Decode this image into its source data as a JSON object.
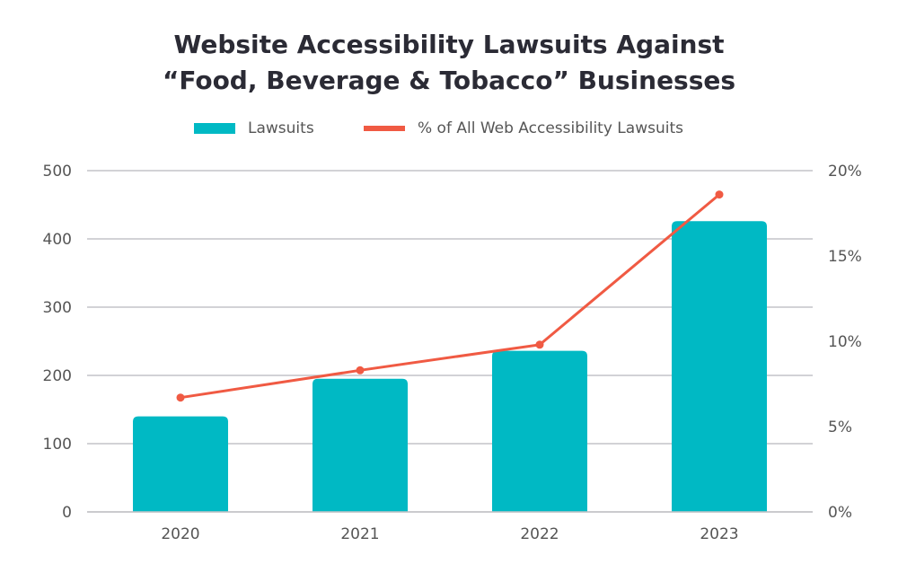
{
  "chart_data": {
    "type": "bar",
    "title_line1": "Website Accessibility Lawsuits Against",
    "title_line2": "“Food, Beverage & Tobacco” Businesses",
    "categories": [
      "2020",
      "2021",
      "2022",
      "2023"
    ],
    "series": [
      {
        "name": "Lawsuits",
        "type": "bar",
        "axis": "left",
        "color": "#00b9c4",
        "values": [
          140,
          195,
          236,
          426
        ]
      },
      {
        "name": "% of All Web Accessibility Lawsuits",
        "type": "line",
        "axis": "right",
        "color": "#f05a43",
        "values": [
          6.7,
          8.3,
          9.8,
          18.6
        ]
      }
    ],
    "left_axis": {
      "ylim": [
        0,
        500
      ],
      "ticks": [
        "0",
        "100",
        "200",
        "300",
        "400",
        "500"
      ]
    },
    "right_axis": {
      "ylim": [
        0,
        20
      ],
      "ticks": [
        "0%",
        "5%",
        "10%",
        "15%",
        "20%"
      ]
    },
    "grid": true,
    "legend_position": "top"
  }
}
